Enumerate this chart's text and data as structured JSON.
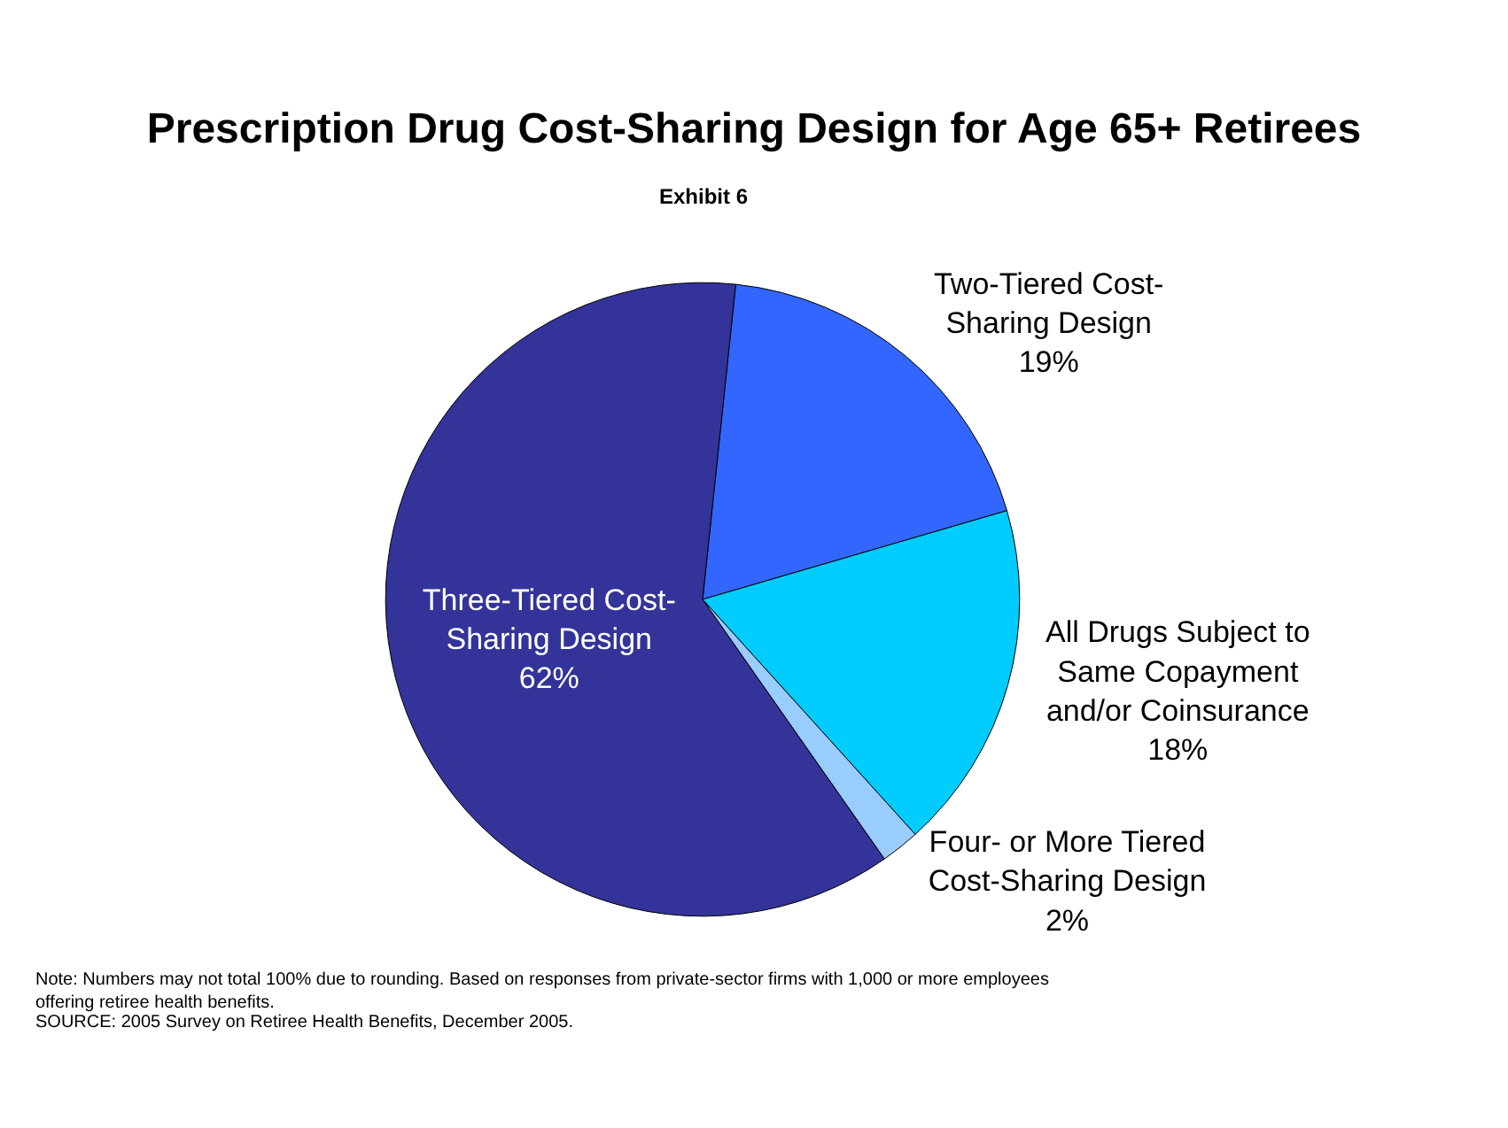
{
  "chart_data": {
    "type": "pie",
    "title": "Prescription Drug Cost-Sharing Design for Age 65+ Retirees",
    "subtitle": "Exhibit 6",
    "categories": [
      "Two-Tiered Cost-Sharing Design",
      "All Drugs Subject to Same Copayment and/or Coinsurance",
      "Four- or More Tiered Cost-Sharing Design",
      "Three-Tiered Cost-Sharing Design"
    ],
    "values": [
      19,
      18,
      2,
      62
    ],
    "value_labels": [
      "19%",
      "18%",
      "2%",
      "62%"
    ],
    "colors": [
      "#3366ff",
      "#00ccff",
      "#99ccff",
      "#333399"
    ],
    "legend": false,
    "annotations": [
      "Note: Numbers may not total 100% due to rounding. Based on responses from private-sector firms with 1,000 or more employees offering retiree health benefits.",
      "SOURCE: 2005 Survey on Retiree Health Benefits, December 2005."
    ]
  }
}
